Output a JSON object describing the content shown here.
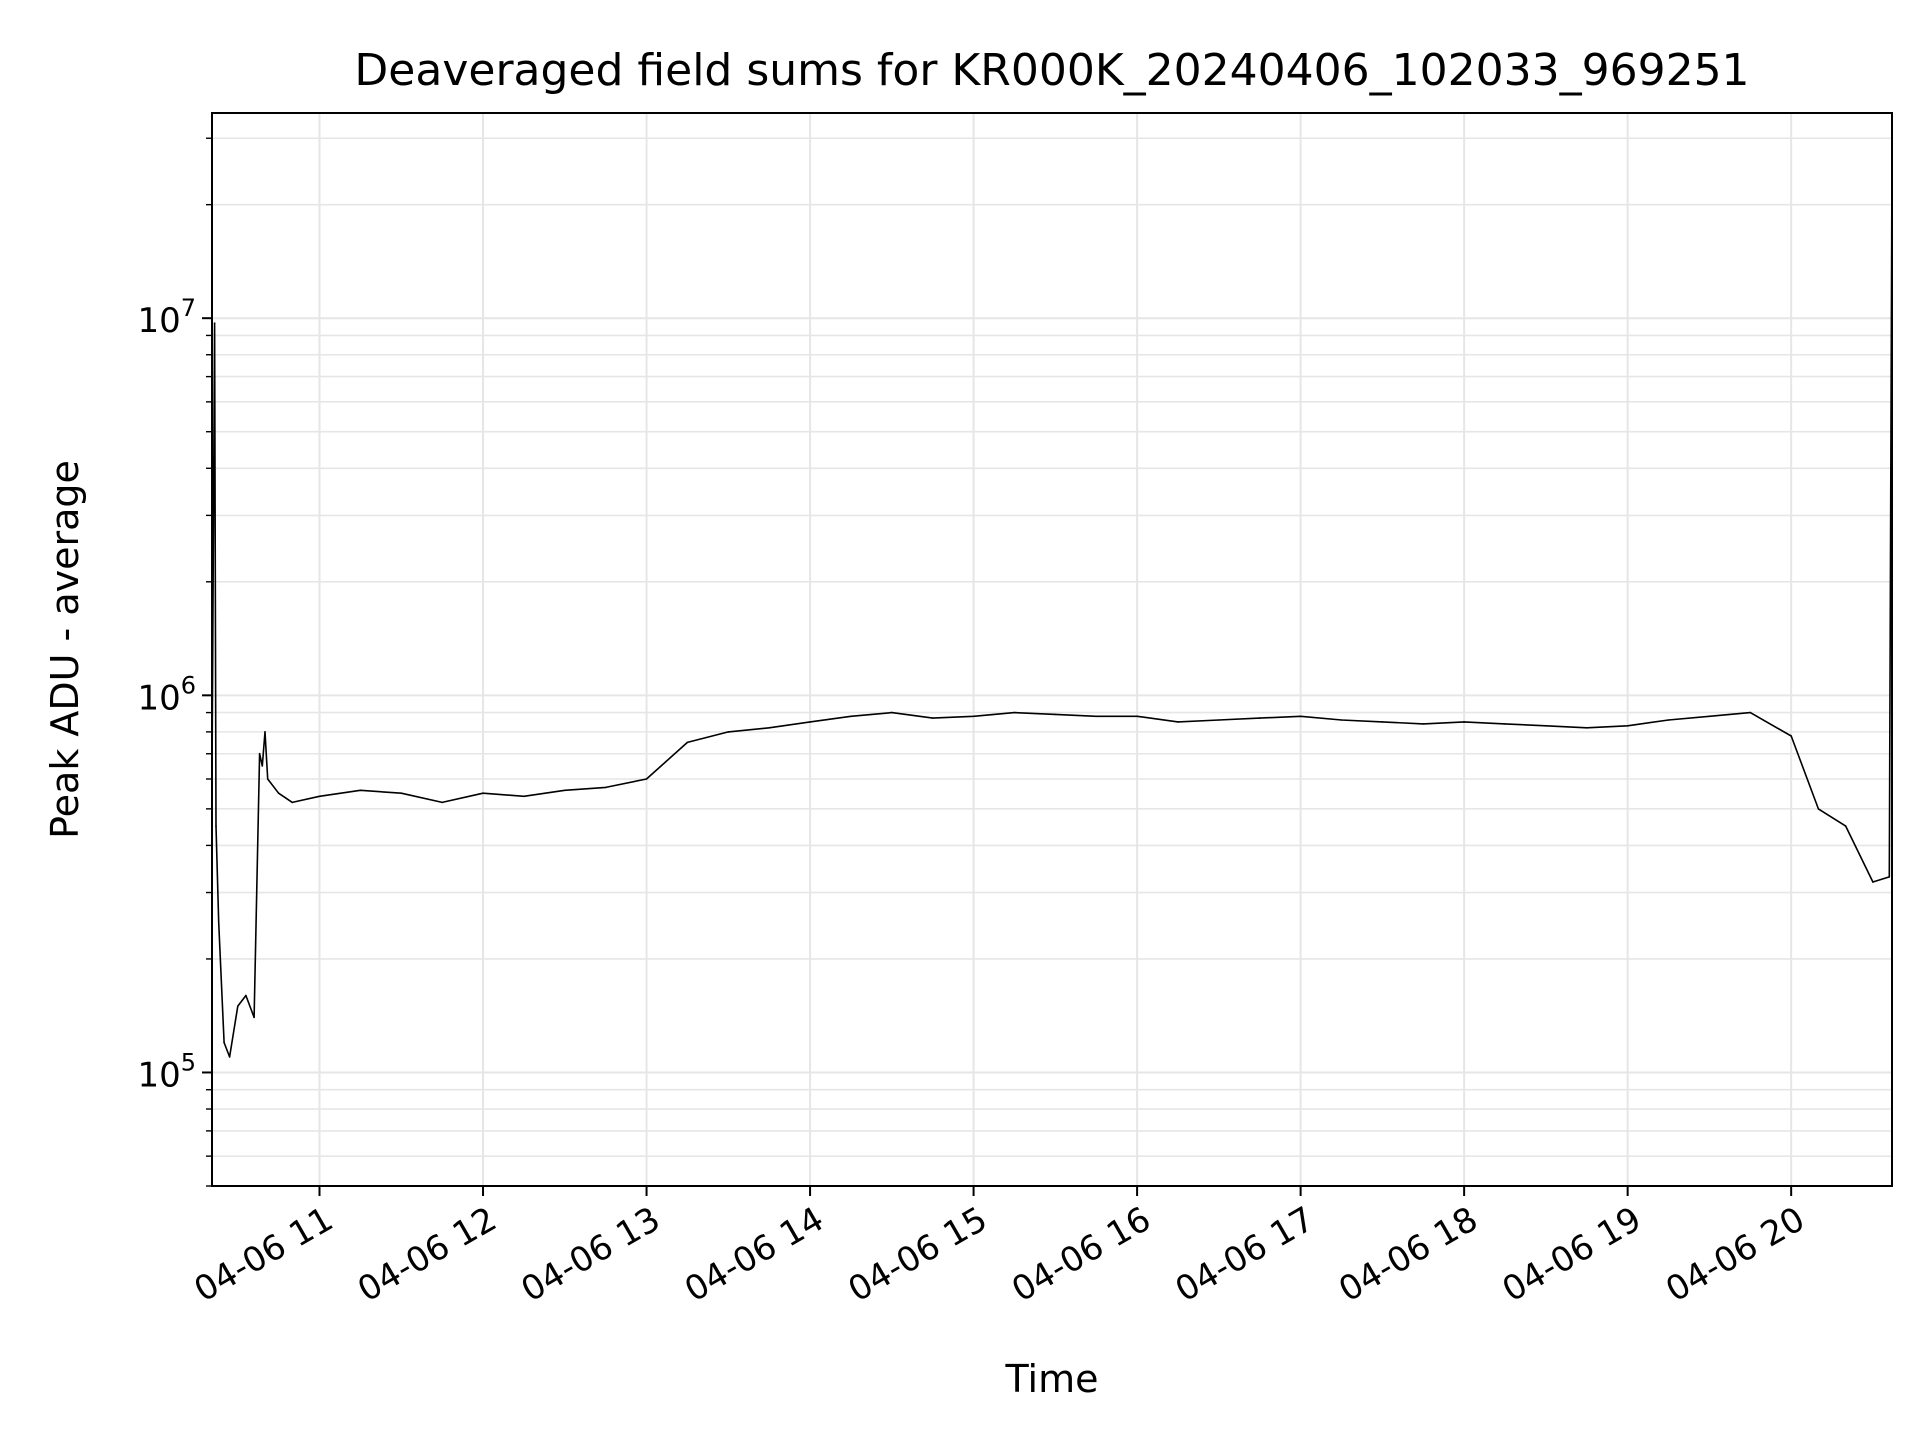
{
  "chart_data": {
    "type": "line",
    "title": "Deaveraged field sums for KR000K_20240406_102033_969251",
    "xlabel": "Time",
    "ylabel": "Peak ADU - average",
    "x_range": [
      "2024-04-06T10:20:33",
      "2024-04-06T20:37:00"
    ],
    "x_ticks": [
      {
        "time": "2024-04-06T11:00:00",
        "label": "04-06 11"
      },
      {
        "time": "2024-04-06T12:00:00",
        "label": "04-06 12"
      },
      {
        "time": "2024-04-06T13:00:00",
        "label": "04-06 13"
      },
      {
        "time": "2024-04-06T14:00:00",
        "label": "04-06 14"
      },
      {
        "time": "2024-04-06T15:00:00",
        "label": "04-06 15"
      },
      {
        "time": "2024-04-06T16:00:00",
        "label": "04-06 16"
      },
      {
        "time": "2024-04-06T17:00:00",
        "label": "04-06 17"
      },
      {
        "time": "2024-04-06T18:00:00",
        "label": "04-06 18"
      },
      {
        "time": "2024-04-06T19:00:00",
        "label": "04-06 19"
      },
      {
        "time": "2024-04-06T20:00:00",
        "label": "04-06 20"
      }
    ],
    "y_scale": "log",
    "ylim": [
      50000,
      35000000
    ],
    "y_ticks": [
      {
        "value": 100000,
        "base": "10",
        "exp": "5"
      },
      {
        "value": 1000000,
        "base": "10",
        "exp": "6"
      },
      {
        "value": 10000000,
        "base": "10",
        "exp": "7"
      }
    ],
    "grid": true,
    "legend": "none",
    "line_color": "#000000",
    "grid_color": "#e6e6e6",
    "series": [
      {
        "x": [
          "2024-04-06T10:20:33",
          "2024-04-06T10:21:30",
          "2024-04-06T10:22:00",
          "2024-04-06T10:23:00",
          "2024-04-06T10:25:00",
          "2024-04-06T10:27:00",
          "2024-04-06T10:30:00",
          "2024-04-06T10:33:00",
          "2024-04-06T10:36:00",
          "2024-04-06T10:38:00",
          "2024-04-06T10:39:00",
          "2024-04-06T10:40:00",
          "2024-04-06T10:41:00",
          "2024-04-06T10:45:00",
          "2024-04-06T10:50:00",
          "2024-04-06T11:00:00",
          "2024-04-06T11:15:00",
          "2024-04-06T11:30:00",
          "2024-04-06T11:45:00",
          "2024-04-06T12:00:00",
          "2024-04-06T12:15:00",
          "2024-04-06T12:30:00",
          "2024-04-06T12:45:00",
          "2024-04-06T13:00:00",
          "2024-04-06T13:15:00",
          "2024-04-06T13:30:00",
          "2024-04-06T13:45:00",
          "2024-04-06T14:00:00",
          "2024-04-06T14:15:00",
          "2024-04-06T14:30:00",
          "2024-04-06T14:45:00",
          "2024-04-06T15:00:00",
          "2024-04-06T15:15:00",
          "2024-04-06T15:30:00",
          "2024-04-06T15:45:00",
          "2024-04-06T16:00:00",
          "2024-04-06T16:15:00",
          "2024-04-06T16:30:00",
          "2024-04-06T16:45:00",
          "2024-04-06T17:00:00",
          "2024-04-06T17:15:00",
          "2024-04-06T17:30:00",
          "2024-04-06T17:45:00",
          "2024-04-06T18:00:00",
          "2024-04-06T18:15:00",
          "2024-04-06T18:30:00",
          "2024-04-06T18:45:00",
          "2024-04-06T19:00:00",
          "2024-04-06T19:15:00",
          "2024-04-06T19:30:00",
          "2024-04-06T19:45:00",
          "2024-04-06T20:00:00",
          "2024-04-06T20:10:00",
          "2024-04-06T20:20:00",
          "2024-04-06T20:30:00",
          "2024-04-06T20:36:00",
          "2024-04-06T20:37:00"
        ],
        "y": [
          600000,
          9700000,
          450000,
          250000,
          120000,
          110000,
          150000,
          160000,
          140000,
          700000,
          650000,
          800000,
          600000,
          550000,
          520000,
          540000,
          560000,
          550000,
          520000,
          550000,
          540000,
          560000,
          570000,
          600000,
          750000,
          800000,
          820000,
          850000,
          880000,
          900000,
          870000,
          880000,
          900000,
          890000,
          880000,
          880000,
          850000,
          860000,
          870000,
          880000,
          860000,
          850000,
          840000,
          850000,
          840000,
          830000,
          820000,
          830000,
          860000,
          880000,
          900000,
          780000,
          500000,
          450000,
          320000,
          330000,
          27000000
        ]
      }
    ]
  }
}
